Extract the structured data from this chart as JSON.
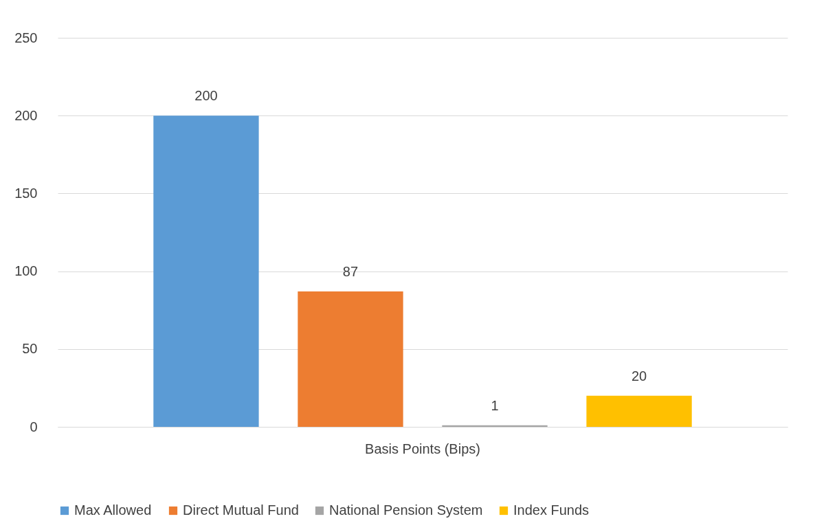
{
  "chart_data": {
    "type": "bar",
    "categories": [
      "Basis Points (Bips)"
    ],
    "series": [
      {
        "name": "Max Allowed",
        "color": "#5b9bd5",
        "values": [
          200
        ]
      },
      {
        "name": "Direct Mutual Fund",
        "color": "#ed7d31",
        "values": [
          87
        ]
      },
      {
        "name": "National Pension System",
        "color": "#a5a5a5",
        "values": [
          1
        ]
      },
      {
        "name": "Index Funds",
        "color": "#ffc000",
        "values": [
          20
        ]
      }
    ],
    "ylim": [
      0,
      250
    ],
    "yticks": [
      0,
      50,
      100,
      150,
      200,
      250
    ],
    "grid": "y",
    "legend": "bottom",
    "data_labels": true
  }
}
